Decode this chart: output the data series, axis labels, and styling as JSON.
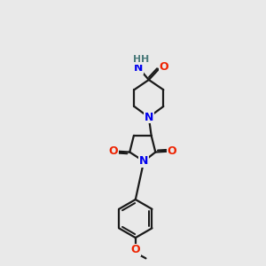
{
  "background_color": "#e9e9e9",
  "bond_color": "#1a1a1a",
  "N_color": "#0000ee",
  "O_color": "#ee2200",
  "H_color": "#4a7a7a",
  "bond_width": 1.6,
  "figsize": [
    3.0,
    3.0
  ],
  "dpi": 100,
  "xlim": [
    0,
    10
  ],
  "ylim": [
    0,
    16
  ]
}
